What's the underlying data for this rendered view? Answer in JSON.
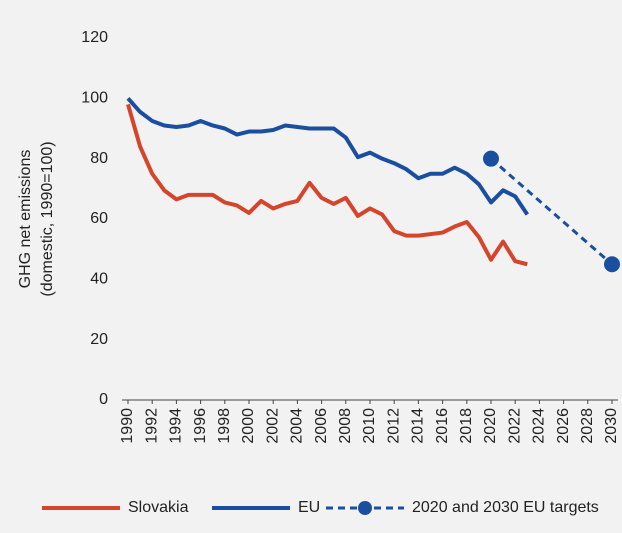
{
  "chart_data": {
    "type": "line",
    "ylabel": [
      "GHG net emissions",
      "(domestic, 1990=100)"
    ],
    "xlim": [
      1990,
      2030
    ],
    "xticks": [
      1990,
      1992,
      1994,
      1996,
      1998,
      2000,
      2002,
      2004,
      2006,
      2008,
      2010,
      2012,
      2014,
      2016,
      2018,
      2020,
      2022,
      2024,
      2026,
      2028,
      2030
    ],
    "ylim": [
      0,
      120
    ],
    "yticks": [
      0,
      20,
      40,
      60,
      80,
      100,
      120
    ],
    "grid": false,
    "legend": "bottom",
    "series": [
      {
        "name": "Slovakia",
        "color": "#d4452b",
        "style": "solid",
        "x": [
          1990,
          1991,
          1992,
          1993,
          1994,
          1995,
          1996,
          1997,
          1998,
          1999,
          2000,
          2001,
          2002,
          2003,
          2004,
          2005,
          2006,
          2007,
          2008,
          2009,
          2010,
          2011,
          2012,
          2013,
          2014,
          2015,
          2016,
          2017,
          2018,
          2019,
          2020,
          2021,
          2022,
          2023
        ],
        "values": [
          98,
          84,
          75,
          69.5,
          66.5,
          68,
          68,
          68,
          65.5,
          64.5,
          62,
          66,
          63.5,
          65,
          66,
          72,
          67,
          65,
          67,
          61,
          63.5,
          61.5,
          56,
          54.5,
          54.5,
          55,
          55.5,
          57.5,
          59,
          54,
          46.5,
          52.5,
          46,
          45
        ]
      },
      {
        "name": "EU",
        "color": "#1a4fa0",
        "style": "solid",
        "x": [
          1990,
          1991,
          1992,
          1993,
          1994,
          1995,
          1996,
          1997,
          1998,
          1999,
          2000,
          2001,
          2002,
          2003,
          2004,
          2005,
          2006,
          2007,
          2008,
          2009,
          2010,
          2011,
          2012,
          2013,
          2014,
          2015,
          2016,
          2017,
          2018,
          2019,
          2020,
          2021,
          2022,
          2023
        ],
        "values": [
          100,
          95.5,
          92.5,
          91,
          90.5,
          91,
          92.5,
          91,
          90,
          88,
          89,
          89,
          89.5,
          91,
          90.5,
          90,
          90,
          90,
          87,
          80.5,
          82,
          80,
          78.5,
          76.5,
          73.5,
          75,
          75,
          77,
          75,
          71.5,
          65.5,
          69.5,
          67.5,
          61.5
        ]
      },
      {
        "name": "2020 and 2030 EU targets",
        "color": "#1a4fa0",
        "style": "dashed",
        "x": [
          2020,
          2030
        ],
        "values": [
          80,
          45
        ]
      }
    ]
  }
}
